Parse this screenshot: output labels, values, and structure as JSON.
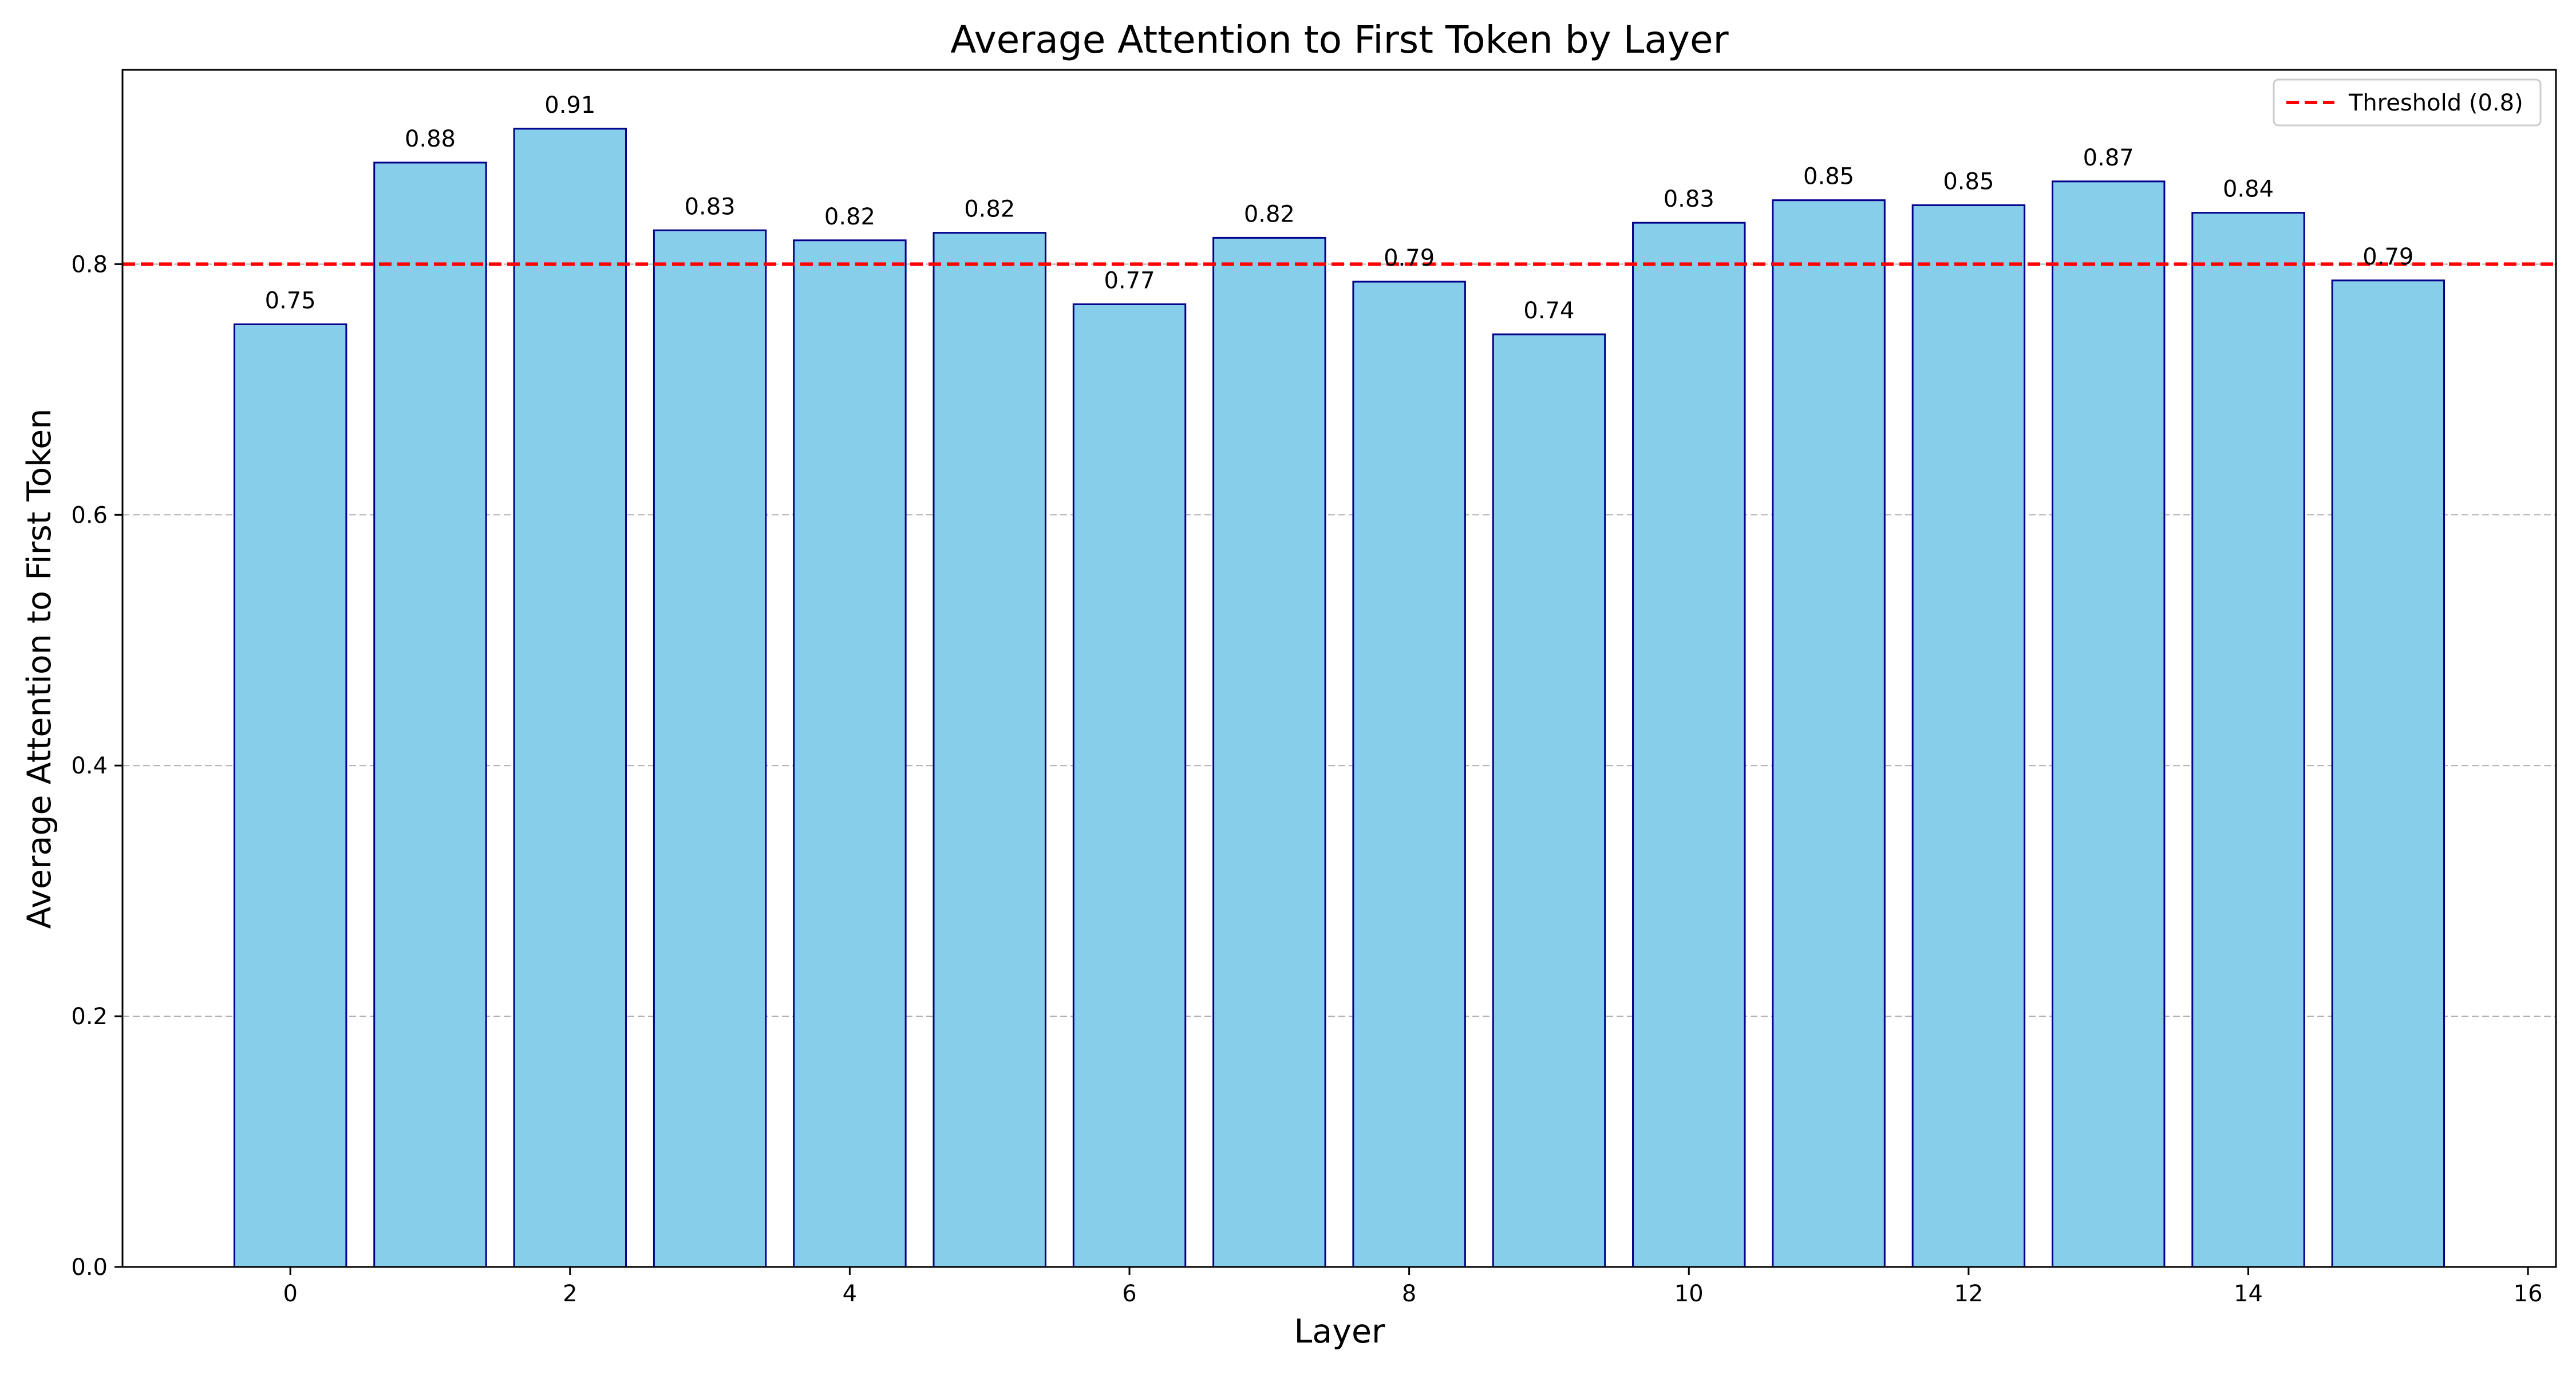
{
  "chart_data": {
    "type": "bar",
    "title": "Average Attention to First Token by Layer",
    "xlabel": "Layer",
    "ylabel": "Average Attention to First Token",
    "categories": [
      0,
      1,
      2,
      3,
      4,
      5,
      6,
      7,
      8,
      9,
      10,
      11,
      12,
      13,
      14,
      15
    ],
    "values": [
      0.752,
      0.881,
      0.908,
      0.827,
      0.819,
      0.825,
      0.768,
      0.821,
      0.786,
      0.744,
      0.833,
      0.851,
      0.847,
      0.866,
      0.841,
      0.787
    ],
    "value_labels": [
      "0.75",
      "0.88",
      "0.91",
      "0.83",
      "0.82",
      "0.82",
      "0.77",
      "0.82",
      "0.79",
      "0.74",
      "0.83",
      "0.85",
      "0.85",
      "0.87",
      "0.84",
      "0.79"
    ],
    "xlim": [
      -1.2,
      16.2
    ],
    "ylim": [
      0,
      0.955
    ],
    "xticks": [
      0,
      2,
      4,
      6,
      8,
      10,
      12,
      14,
      16
    ],
    "yticks": [
      0.0,
      0.2,
      0.4,
      0.6,
      0.8
    ],
    "ytick_labels": [
      "0.0",
      "0.2",
      "0.4",
      "0.6",
      "0.8"
    ],
    "grid": "y-dashed",
    "bar_color": "#87CEEB",
    "bar_edge_color": "#00008B",
    "threshold": {
      "value": 0.8,
      "label": "Threshold (0.8)",
      "color": "#FF0000",
      "style": "dashed"
    },
    "legend_position": "top-right"
  }
}
